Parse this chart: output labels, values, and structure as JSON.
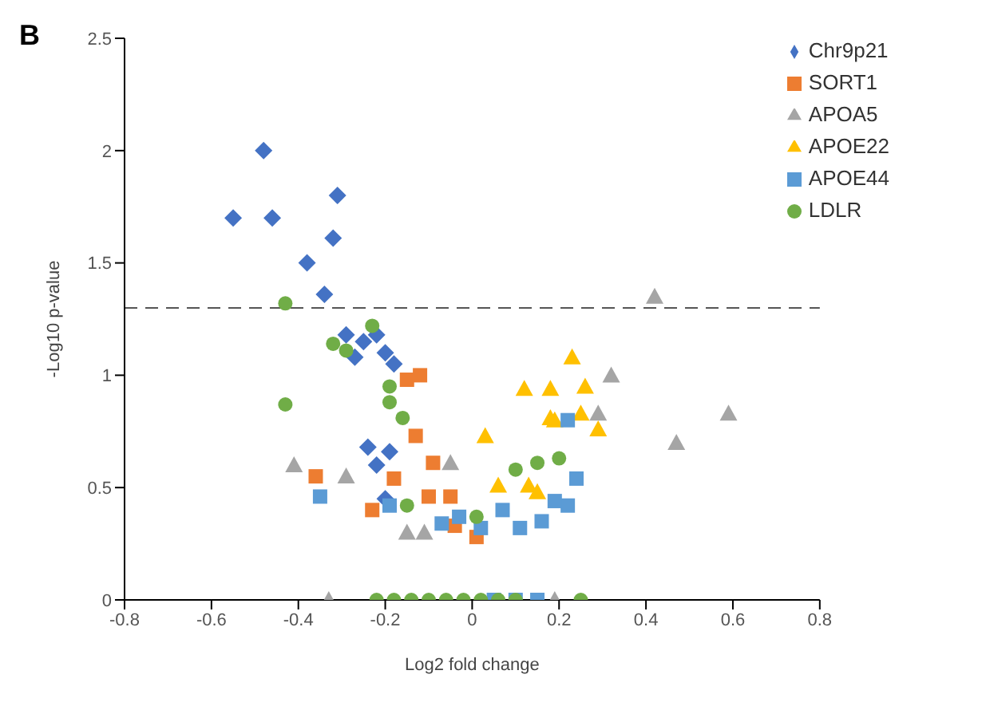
{
  "chart_data": {
    "type": "scatter",
    "title": "B",
    "xlabel": "Log2 fold change",
    "ylabel": "-Log10 p-value",
    "xlim": [
      -0.8,
      0.8
    ],
    "xticks": [
      -0.8,
      -0.6,
      -0.4,
      -0.2,
      0,
      0.2,
      0.4,
      0.6,
      0.8
    ],
    "ylim": [
      0,
      2.5
    ],
    "yticks": [
      0,
      0.5,
      1,
      1.5,
      2,
      2.5
    ],
    "grid": false,
    "legend": "top right",
    "ref_lines": [
      {
        "axis": "y",
        "value": 1.3,
        "line_style": "dashed"
      }
    ],
    "series": [
      {
        "name": "Chr9p21",
        "color": "#4472c4",
        "marker": "diamond",
        "x": [
          -0.55,
          -0.48,
          -0.46,
          -0.31,
          -0.32,
          -0.38,
          -0.34,
          -0.29,
          -0.25,
          -0.22,
          -0.2,
          -0.18,
          -0.27,
          -0.24,
          -0.19,
          -0.2,
          -0.22
        ],
        "values": [
          1.7,
          2.0,
          1.7,
          1.8,
          1.61,
          1.5,
          1.36,
          1.18,
          1.15,
          1.18,
          1.1,
          1.05,
          1.08,
          0.68,
          0.66,
          0.45,
          0.6
        ]
      },
      {
        "name": "SORT1",
        "color": "#ed7d31",
        "marker": "square",
        "x": [
          -0.12,
          -0.15,
          -0.13,
          -0.36,
          -0.09,
          -0.18,
          -0.23,
          -0.05,
          -0.04,
          0.01,
          -0.1
        ],
        "values": [
          1.0,
          0.98,
          0.73,
          0.55,
          0.61,
          0.54,
          0.4,
          0.46,
          0.33,
          0.28,
          0.46
        ]
      },
      {
        "name": "APOA5",
        "color": "#a5a5a5",
        "marker": "triangle",
        "x": [
          -0.41,
          -0.29,
          -0.33,
          -0.05,
          -0.15,
          -0.11,
          0.32,
          0.47,
          0.59,
          0.42,
          0.29,
          0.19
        ],
        "values": [
          0.6,
          0.55,
          0,
          0.61,
          0.3,
          0.3,
          1.0,
          0.7,
          0.83,
          1.35,
          0.83,
          0
        ]
      },
      {
        "name": "APOE22",
        "color": "#ffc000",
        "marker": "triangle",
        "x": [
          0.23,
          0.12,
          0.18,
          0.26,
          0.18,
          0.25,
          0.29,
          0.03,
          0.06,
          0.13,
          0.15,
          0.19
        ],
        "values": [
          1.08,
          0.94,
          0.94,
          0.95,
          0.81,
          0.83,
          0.76,
          0.73,
          0.51,
          0.51,
          0.48,
          0.8
        ]
      },
      {
        "name": "APOE44",
        "color": "#5b9bd5",
        "marker": "square",
        "x": [
          0.22,
          0.24,
          0.22,
          0.19,
          0.11,
          0.02,
          -0.07,
          0.16,
          0.07,
          -0.35,
          -0.19,
          -0.03,
          0.05,
          0.1,
          0.15
        ],
        "values": [
          0.8,
          0.54,
          0.42,
          0.44,
          0.32,
          0.32,
          0.34,
          0.35,
          0.4,
          0.46,
          0.42,
          0.37,
          0,
          0,
          0
        ]
      },
      {
        "name": "LDLR",
        "color": "#70ad47",
        "marker": "circle",
        "x": [
          -0.43,
          -0.23,
          -0.32,
          -0.29,
          -0.43,
          -0.19,
          -0.19,
          -0.16,
          -0.15,
          0.2,
          0.15,
          0.1,
          0.01,
          -0.22,
          -0.18,
          -0.14,
          -0.1,
          -0.06,
          -0.02,
          0.02,
          0.06,
          0.1,
          0.25
        ],
        "values": [
          1.32,
          1.22,
          1.14,
          1.11,
          0.87,
          0.95,
          0.88,
          0.81,
          0.42,
          0.63,
          0.61,
          0.58,
          0.37,
          0,
          0,
          0,
          0,
          0,
          0,
          0,
          0,
          0,
          0
        ]
      }
    ]
  }
}
